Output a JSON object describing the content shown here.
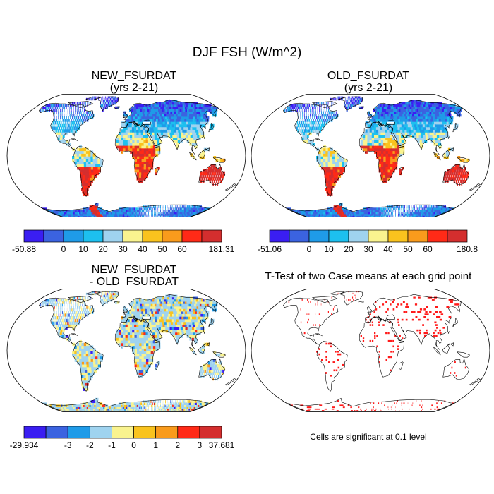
{
  "title": "DJF FSH (W/m^2)",
  "panels": [
    {
      "title1": "NEW_FSURDAT",
      "title2": "(yrs 2-21)"
    },
    {
      "title1": "OLD_FSURDAT",
      "title2": "(yrs 2-21)"
    },
    {
      "title1": "NEW_FSURDAT",
      "title2": "- OLD_FSURDAT"
    },
    {
      "title1": "T-Test of two Case means at each grid point",
      "title2": ""
    }
  ],
  "colorbars": [
    {
      "labels": [
        "-50.88",
        "0",
        "10",
        "20",
        "30",
        "40",
        "50",
        "60",
        "181.31"
      ],
      "colors": [
        "#3a1ef2",
        "#3b63e0",
        "#1f9be8",
        "#1dc0ef",
        "#9fd3ef",
        "#f9f38f",
        "#f9c31e",
        "#f99b1c",
        "#ff2a17",
        "#d42e2e"
      ]
    },
    {
      "labels": [
        "-51.06",
        "0",
        "10",
        "20",
        "30",
        "40",
        "50",
        "60",
        "180.8"
      ],
      "colors": [
        "#3a1ef2",
        "#3b63e0",
        "#1f9be8",
        "#1dc0ef",
        "#9fd3ef",
        "#f9f38f",
        "#f9c31e",
        "#f99b1c",
        "#ff2a17",
        "#d42e2e"
      ]
    },
    {
      "labels": [
        "-29.934",
        "-3",
        "-2",
        "-1",
        "0",
        "1",
        "2",
        "3",
        "37.681"
      ],
      "colors": [
        "#3a1ef2",
        "#3b63e0",
        "#1f9be8",
        "#9fd3ef",
        "#f9f38f",
        "#f9c31e",
        "#f99b1c",
        "#ff2a17",
        "#d42e2e"
      ]
    }
  ],
  "significance_note": "Cells are significant at 0.1 level",
  "colors": {
    "cold": "#3b63e0",
    "warm": "#d42e2e",
    "diff_base": "#9fd3ef",
    "significant": "#ff1a1a"
  }
}
